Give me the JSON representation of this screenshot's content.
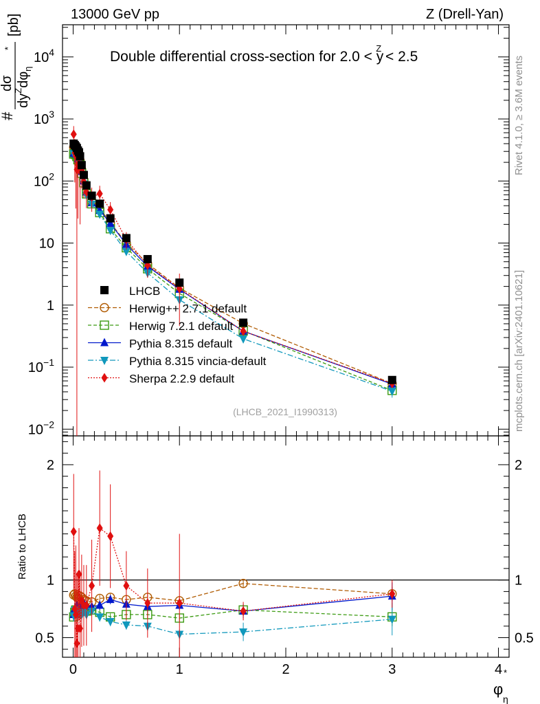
{
  "header": {
    "left": "13000 GeV pp",
    "right_pre": "Z (Drell-Yan)"
  },
  "side_labels": {
    "rivet": "Rivet 4.1.0, ≥ 3.6M events",
    "mcplots": "mcplots.cern.ch [arXiv:2401.10621]"
  },
  "chart_data": {
    "type": "scatter",
    "title": "Double differential cross-section for 2.0 < y < 2.5",
    "title_parts": {
      "pre": "Double differential cross-section for 2.0 < ",
      "var": "y",
      "sup": "Z",
      "post": " < 2.5"
    },
    "analysis_id": "(LHCB_2021_I1990313)",
    "ylabel": {
      "num": "dσ",
      "den": "dy",
      "den_sup": "Z",
      "den_tail": "dφ",
      "unit": "[pb]",
      "star": "*",
      "sub": "η",
      "hash": "#"
    },
    "xlabel": {
      "main": "φ",
      "sup": "*",
      "sub": "η"
    },
    "ratio_ylabel": "Ratio to LHCB",
    "xlim": [
      -0.1,
      4.1
    ],
    "main_ylim": [
      0.0078,
      33000
    ],
    "main_yscale": "log",
    "ratio_ylim": [
      0.33,
      2.25
    ],
    "x_ticks": [
      0,
      1,
      2,
      3,
      4
    ],
    "x_tick_labels": [
      "0",
      "1",
      "2",
      "3",
      "4"
    ],
    "main_y_ticks": [
      {
        "value": 0.01,
        "base": "10",
        "exp": "−2"
      },
      {
        "value": 0.1,
        "base": "10",
        "exp": "−1"
      },
      {
        "value": 1,
        "base": "1",
        "exp": ""
      },
      {
        "value": 10,
        "base": "10",
        "exp": ""
      },
      {
        "value": 100,
        "base": "10",
        "exp": "2"
      },
      {
        "value": 1000,
        "base": "10",
        "exp": "3"
      },
      {
        "value": 10000,
        "base": "10",
        "exp": "4"
      }
    ],
    "ratio_y_ticks": [
      {
        "value": 0.5,
        "label": "0.5"
      },
      {
        "value": 1,
        "label": "1"
      },
      {
        "value": 2,
        "label": "2"
      }
    ],
    "x": [
      0.005,
      0.015,
      0.025,
      0.035,
      0.045,
      0.055,
      0.065,
      0.08,
      0.1,
      0.125,
      0.175,
      0.25,
      0.35,
      0.5,
      0.7,
      1.0,
      1.6,
      3.0
    ],
    "data": {
      "name": "LHCB",
      "color": "#000000",
      "values": [
        400,
        380,
        360,
        340,
        310,
        290,
        250,
        180,
        125,
        85,
        58,
        43,
        25,
        12,
        5.5,
        2.3,
        0.52,
        0.062
      ],
      "ratio_err": [
        0.02,
        0.02,
        0.02,
        0.02,
        0.02,
        0.02,
        0.02,
        0.02,
        0.02,
        0.02,
        0.02,
        0.02,
        0.02,
        0.02,
        0.02,
        0.03,
        0.05,
        0.08
      ]
    },
    "series": [
      {
        "name": "Herwig++ 2.7.1 default",
        "color": "#b05a00",
        "dash": "6,3",
        "marker": "circle-open",
        "ratio": [
          0.87,
          0.88,
          0.86,
          0.85,
          0.87,
          0.84,
          0.86,
          0.85,
          0.83,
          0.82,
          0.81,
          0.84,
          0.85,
          0.83,
          0.85,
          0.82,
          0.97,
          0.88
        ],
        "ratio_err": [
          0.04,
          0.04,
          0.04,
          0.04,
          0.04,
          0.04,
          0.04,
          0.04,
          0.03,
          0.03,
          0.03,
          0.03,
          0.03,
          0.03,
          0.03,
          0.03,
          0.04,
          0.06
        ]
      },
      {
        "name": "Herwig 7.2.1 default",
        "color": "#3a9a10",
        "dash": "5,3",
        "marker": "square-open",
        "ratio": [
          0.68,
          0.72,
          0.74,
          0.73,
          0.71,
          0.75,
          0.73,
          0.74,
          0.75,
          0.73,
          0.74,
          0.72,
          0.68,
          0.7,
          0.7,
          0.67,
          0.74,
          0.68
        ],
        "ratio_err": [
          0.04,
          0.04,
          0.04,
          0.04,
          0.04,
          0.04,
          0.04,
          0.04,
          0.03,
          0.03,
          0.03,
          0.03,
          0.03,
          0.03,
          0.03,
          0.03,
          0.05,
          0.08
        ]
      },
      {
        "name": "Pythia 8.315 default",
        "color": "#0018cc",
        "dash": "",
        "marker": "triangle-up",
        "ratio": [
          0.7,
          0.75,
          0.76,
          0.78,
          0.74,
          0.77,
          0.75,
          0.79,
          0.8,
          0.78,
          0.77,
          0.78,
          0.83,
          0.79,
          0.77,
          0.78,
          0.73,
          0.86
        ],
        "ratio_err": [
          0.05,
          0.05,
          0.05,
          0.05,
          0.05,
          0.05,
          0.05,
          0.05,
          0.04,
          0.04,
          0.04,
          0.04,
          0.04,
          0.04,
          0.04,
          0.04,
          0.06,
          0.12
        ]
      },
      {
        "name": "Pythia 8.315 vincia-default",
        "color": "#1098bc",
        "dash": "8,3,2,3",
        "marker": "triangle-down",
        "ratio": [
          0.69,
          0.74,
          0.73,
          0.72,
          0.7,
          0.71,
          0.72,
          0.7,
          0.72,
          0.7,
          0.73,
          0.68,
          0.64,
          0.61,
          0.6,
          0.53,
          0.55,
          0.66
        ],
        "ratio_err": [
          0.05,
          0.05,
          0.05,
          0.05,
          0.05,
          0.05,
          0.05,
          0.05,
          0.04,
          0.04,
          0.04,
          0.04,
          0.04,
          0.04,
          0.04,
          0.04,
          0.08,
          0.14
        ]
      },
      {
        "name": "Sherpa 2.2.9 default",
        "color": "#e01010",
        "dash": "2,2",
        "marker": "diamond",
        "ratio": [
          1.42,
          0.75,
          0.7,
          0.45,
          0.58,
          1.05,
          0.58,
          0.82,
          0.78,
          0.78,
          0.95,
          1.45,
          1.38,
          0.95,
          0.8,
          0.8,
          0.73,
          0.88
        ],
        "ratio_err": [
          0.5,
          0.5,
          0.6,
          0.6,
          0.5,
          0.4,
          0.5,
          0.4,
          0.35,
          0.35,
          0.4,
          0.5,
          0.45,
          0.3,
          0.3,
          0.6,
          0.08,
          0.12
        ]
      }
    ]
  }
}
